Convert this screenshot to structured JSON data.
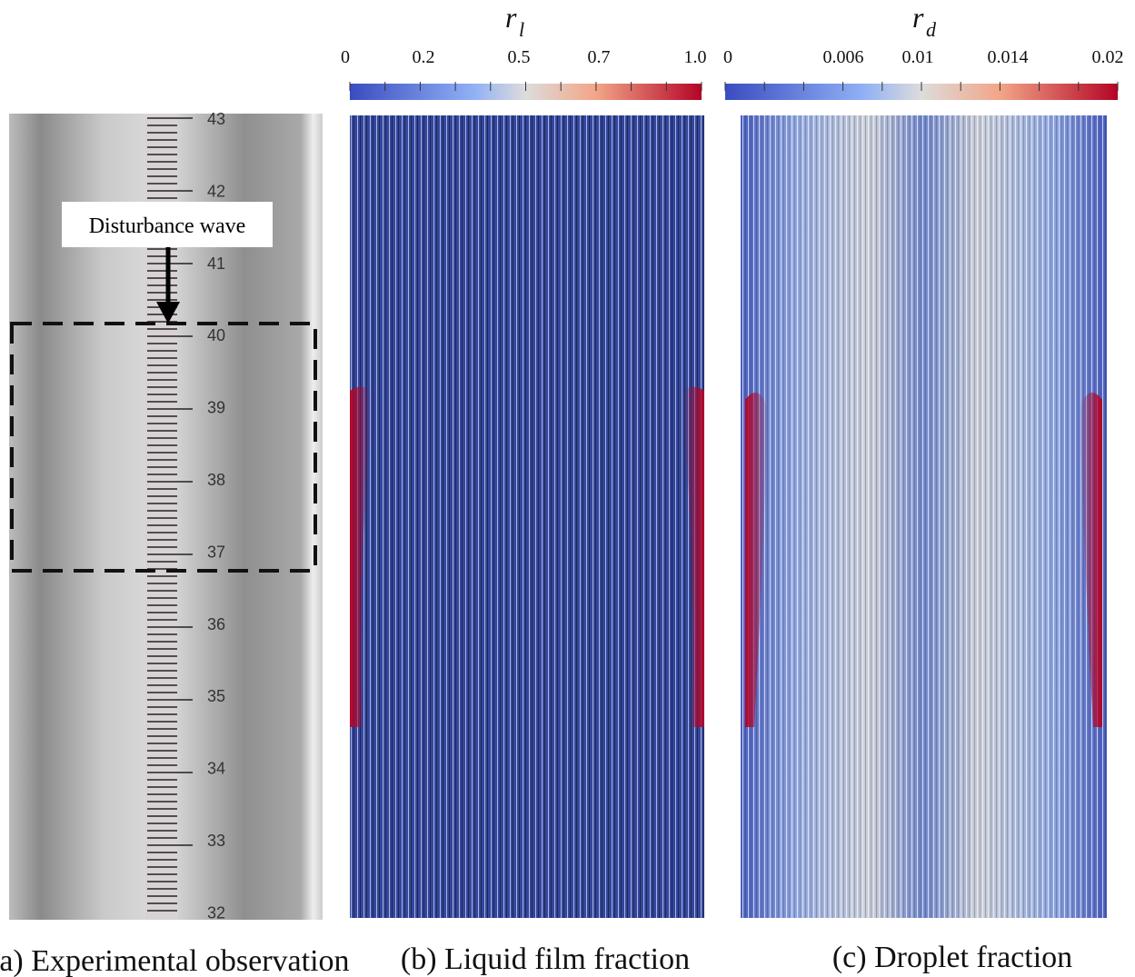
{
  "panels": [
    {
      "caption": "(a) Experimental observation",
      "annotation": "Disturbance wave",
      "ruler": [
        "43",
        "42",
        "41",
        "40",
        "39",
        "38",
        "37",
        "36",
        "35",
        "34",
        "33",
        "32"
      ]
    },
    {
      "caption": "(b) Liquid film fraction",
      "colorbar": {
        "symbol": "r",
        "subscript": "l",
        "ticks": [
          "0",
          "0.2",
          "0.5",
          "0.7",
          "1.0"
        ]
      }
    },
    {
      "caption": "(c) Droplet fraction",
      "colorbar": {
        "symbol": "r",
        "subscript": "d",
        "ticks": [
          "0",
          "0.006",
          "0.01",
          "0.014",
          "0.02"
        ]
      }
    }
  ]
}
